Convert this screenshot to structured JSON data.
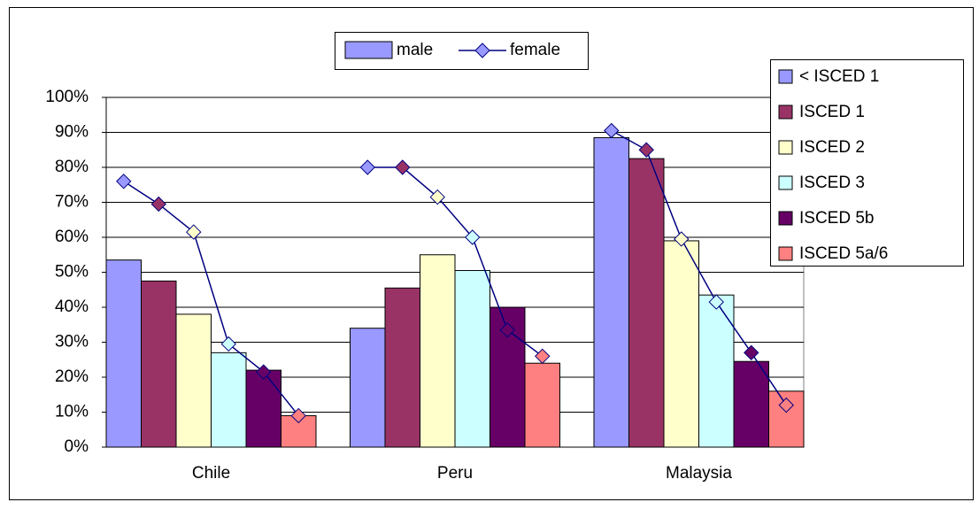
{
  "chart_data": {
    "type": "bar",
    "categories": [
      "Chile",
      "Peru",
      "Malaysia"
    ],
    "measures": [
      "male",
      "female"
    ],
    "line_color": "#000080",
    "series": [
      {
        "name": "< ISCED 1",
        "color": "#9999ff",
        "values": [
          53.5,
          34,
          88.5
        ],
        "female": [
          76,
          80,
          90.5
        ]
      },
      {
        "name": "ISCED 1",
        "color": "#993366",
        "values": [
          47.5,
          45.5,
          82.5
        ],
        "female": [
          69.5,
          80,
          85
        ]
      },
      {
        "name": "ISCED 2",
        "color": "#ffffcc",
        "values": [
          38,
          55,
          59
        ],
        "female": [
          61.5,
          71.5,
          59.5
        ]
      },
      {
        "name": "ISCED 3",
        "color": "#ccffff",
        "values": [
          27,
          50.5,
          43.5
        ],
        "female": [
          29.5,
          60,
          41.5
        ]
      },
      {
        "name": "ISCED 5b",
        "color": "#660066",
        "values": [
          22,
          40,
          24.5
        ],
        "female": [
          21.5,
          33.5,
          27
        ]
      },
      {
        "name": "ISCED 5a/6",
        "color": "#ff8080",
        "values": [
          9,
          24,
          16
        ],
        "female": [
          9,
          26,
          12
        ]
      }
    ],
    "ylim": [
      0,
      100
    ],
    "yticks": [
      {
        "value": 0,
        "label": "0%"
      },
      {
        "value": 10,
        "label": "10%"
      },
      {
        "value": 20,
        "label": "20%"
      },
      {
        "value": 30,
        "label": "30%"
      },
      {
        "value": 40,
        "label": "40%"
      },
      {
        "value": 50,
        "label": "50%"
      },
      {
        "value": 60,
        "label": "60%"
      },
      {
        "value": 70,
        "label": "70%"
      },
      {
        "value": 80,
        "label": "80%"
      },
      {
        "value": 90,
        "label": "90%"
      },
      {
        "value": 100,
        "label": "100%"
      }
    ],
    "grid": true
  }
}
